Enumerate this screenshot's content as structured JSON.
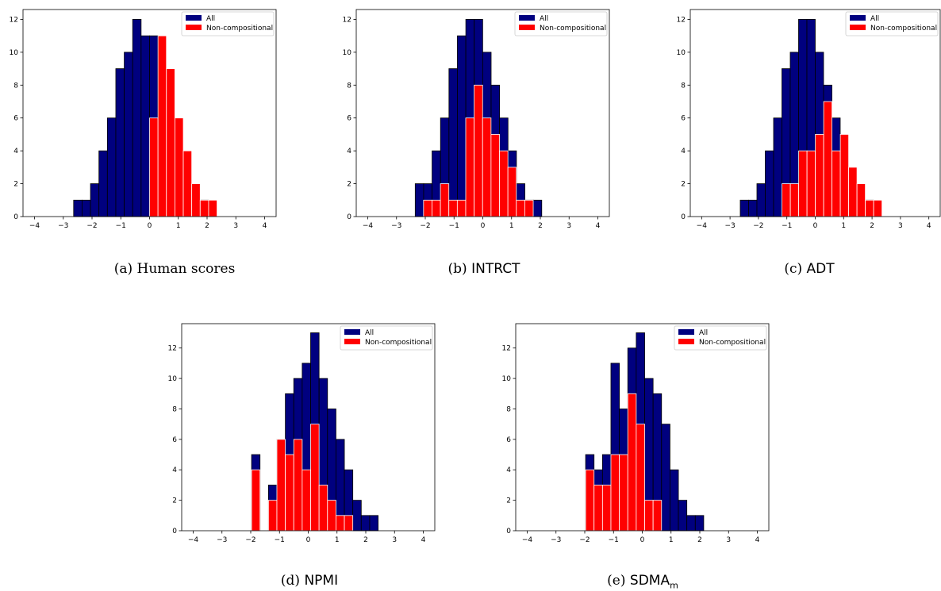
{
  "colors": {
    "all": "#00007f",
    "noncomp": "#ff0000"
  },
  "legend": {
    "all": "All",
    "noncomp": "Non-compositional"
  },
  "chart_data": [
    {
      "type": "bar",
      "caption_prefix": "(a)",
      "caption_name": "Human scores",
      "caption_sub": "",
      "bin_width": 0.2933,
      "xlim": [
        -4.4,
        4.4
      ],
      "ylim": [
        0,
        12.6
      ],
      "xticks": [
        -4,
        -3,
        -2,
        -1,
        0,
        1,
        2,
        3,
        4
      ],
      "yticks": [
        0,
        2,
        4,
        6,
        8,
        10,
        12
      ],
      "series": [
        {
          "name": "All",
          "bin_start": -2.64,
          "values": [
            1,
            1,
            2,
            4,
            6,
            9,
            10,
            12,
            11,
            11,
            9,
            6,
            4,
            2,
            1,
            1
          ]
        },
        {
          "name": "Non-compositional",
          "bin_start": 0.0,
          "values": [
            6,
            11,
            9,
            6,
            4,
            2,
            1,
            1
          ]
        }
      ]
    },
    {
      "type": "bar",
      "caption_prefix": "(b)",
      "caption_name": "INTRCT",
      "caption_sub": "",
      "bin_width": 0.2933,
      "xlim": [
        -4.4,
        4.4
      ],
      "ylim": [
        0,
        12.6
      ],
      "xticks": [
        -4,
        -3,
        -2,
        -1,
        0,
        1,
        2,
        3,
        4
      ],
      "yticks": [
        0,
        2,
        4,
        6,
        8,
        10,
        12
      ],
      "series": [
        {
          "name": "All",
          "bin_start": -2.35,
          "values": [
            2,
            2,
            4,
            6,
            9,
            11,
            12,
            12,
            10,
            8,
            6,
            4,
            2,
            1,
            1
          ]
        },
        {
          "name": "Non-compositional",
          "bin_start": -2.06,
          "values": [
            1,
            1,
            2,
            1,
            1,
            6,
            8,
            6,
            5,
            4,
            3,
            1,
            1
          ]
        }
      ]
    },
    {
      "type": "bar",
      "caption_prefix": "(c)",
      "caption_name": "ADT",
      "caption_sub": "",
      "bin_width": 0.2933,
      "xlim": [
        -4.4,
        4.4
      ],
      "ylim": [
        0,
        12.6
      ],
      "xticks": [
        -4,
        -3,
        -2,
        -1,
        0,
        1,
        2,
        3,
        4
      ],
      "yticks": [
        0,
        2,
        4,
        6,
        8,
        10,
        12
      ],
      "series": [
        {
          "name": "All",
          "bin_start": -2.64,
          "values": [
            1,
            1,
            2,
            4,
            6,
            9,
            10,
            12,
            12,
            10,
            8,
            6,
            4,
            2,
            1,
            1
          ]
        },
        {
          "name": "Non-compositional",
          "bin_start": -1.17,
          "values": [
            2,
            2,
            4,
            4,
            5,
            7,
            4,
            5,
            3,
            2,
            1,
            1
          ]
        }
      ]
    },
    {
      "type": "bar",
      "caption_prefix": "(d)",
      "caption_name": "NPMI",
      "caption_sub": "",
      "bin_width": 0.2933,
      "xlim": [
        -4.4,
        4.4
      ],
      "ylim": [
        0,
        13.6
      ],
      "xticks": [
        -4,
        -3,
        -2,
        -1,
        0,
        1,
        2,
        3,
        4
      ],
      "yticks": [
        0,
        2,
        4,
        6,
        8,
        10,
        12
      ],
      "series": [
        {
          "name": "All",
          "bin_start": -1.97,
          "values": [
            5,
            0,
            3,
            6,
            9,
            10,
            11,
            13,
            10,
            8,
            6,
            4,
            2,
            1,
            1
          ]
        },
        {
          "name": "Non-compositional",
          "bin_start": -1.97,
          "values": [
            4,
            0,
            2,
            6,
            5,
            6,
            4,
            7,
            3,
            2,
            1,
            1
          ]
        }
      ]
    },
    {
      "type": "bar",
      "caption_prefix": "(e)",
      "caption_name": "SDMA",
      "caption_sub": "m",
      "bin_width": 0.2933,
      "xlim": [
        -4.4,
        4.4
      ],
      "ylim": [
        0,
        13.6
      ],
      "xticks": [
        -4,
        -3,
        -2,
        -1,
        0,
        1,
        2,
        3,
        4
      ],
      "yticks": [
        0,
        2,
        4,
        6,
        8,
        10,
        12
      ],
      "series": [
        {
          "name": "All",
          "bin_start": -1.97,
          "values": [
            5,
            4,
            5,
            11,
            8,
            12,
            13,
            10,
            9,
            7,
            4,
            2,
            1,
            1
          ]
        },
        {
          "name": "Non-compositional",
          "bin_start": -1.97,
          "values": [
            4,
            3,
            3,
            5,
            5,
            9,
            7,
            2,
            2
          ]
        }
      ]
    }
  ]
}
